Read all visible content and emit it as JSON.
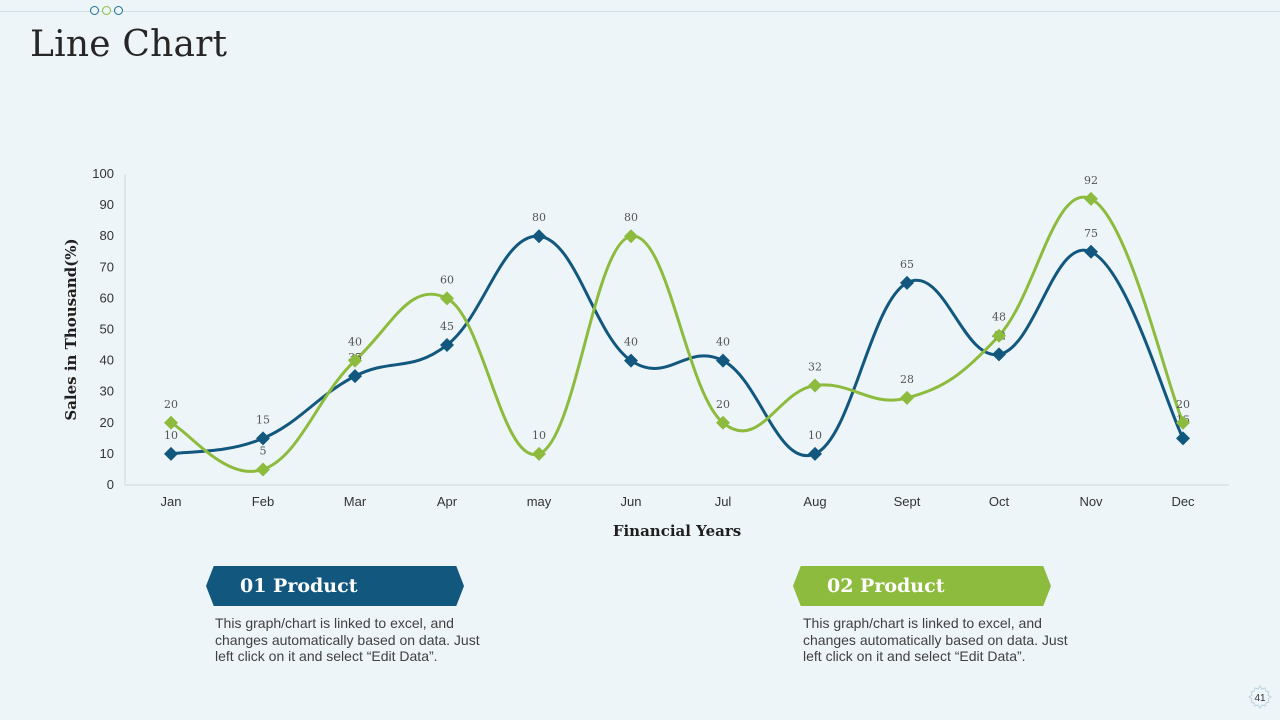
{
  "header": {
    "title": "Line Chart"
  },
  "chart_data": {
    "type": "line",
    "categories": [
      "Jan",
      "Feb",
      "Mar",
      "Apr",
      "may",
      "Jun",
      "Jul",
      "Aug",
      "Sept",
      "Oct",
      "Nov",
      "Dec"
    ],
    "series": [
      {
        "name": "01 Product",
        "color": "#11577e",
        "values": [
          10,
          15,
          35,
          45,
          80,
          40,
          40,
          10,
          65,
          42,
          75,
          15
        ]
      },
      {
        "name": "02 Product",
        "color": "#8cbb3e",
        "values": [
          20,
          5,
          40,
          60,
          10,
          80,
          20,
          32,
          28,
          48,
          92,
          20
        ]
      }
    ],
    "xlabel": "Financial Years",
    "ylabel": "Sales in Thousand(%)",
    "ylim": [
      0,
      100
    ],
    "yticks": [
      0,
      10,
      20,
      30,
      40,
      50,
      60,
      70,
      80,
      90,
      100
    ],
    "grid": false,
    "data_labels": true
  },
  "products": [
    {
      "label": "01 Product",
      "description": "This graph/chart is linked to excel, and changes automatically based on data. Just left click on it and select “Edit Data”."
    },
    {
      "label": "02 Product",
      "description": "This graph/chart is linked to excel, and changes automatically based on data. Just left click on it and select “Edit Data”."
    }
  ],
  "footer": {
    "page_number": "41",
    "icon": "gear-icon"
  }
}
